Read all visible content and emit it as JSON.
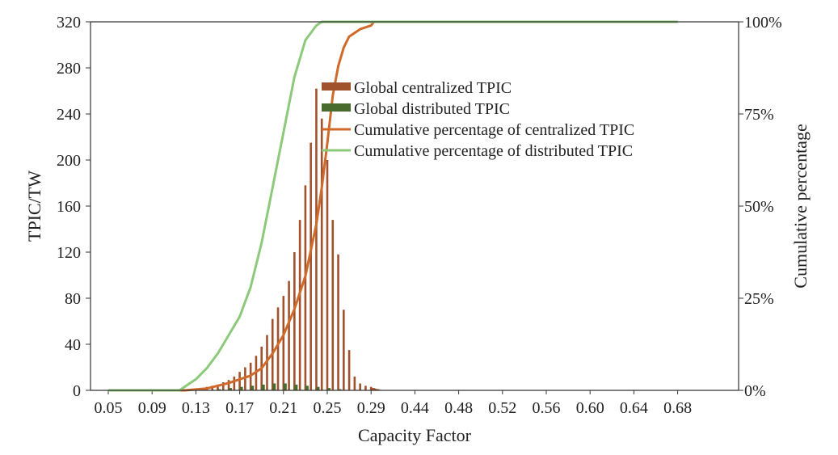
{
  "chart_data": {
    "type": "bar",
    "xlabel": "Capacity Factor",
    "ylabel": "TPIC/TW",
    "y2label": "Cumulative percentage",
    "ylim": [
      0,
      320
    ],
    "y2lim": [
      0,
      100
    ],
    "y_ticks": [
      0,
      40,
      80,
      120,
      160,
      200,
      240,
      280,
      320
    ],
    "y2_ticks": [
      "0%",
      "25%",
      "50%",
      "75%",
      "100%"
    ],
    "x_tick_labels": [
      "0.05",
      "0.09",
      "0.13",
      "0.17",
      "0.21",
      "0.25",
      "0.29",
      "0.44",
      "0.48",
      "0.52",
      "0.56",
      "0.60",
      "0.64",
      "0.68"
    ],
    "grid": false,
    "legend_position": "top-center",
    "legend": [
      {
        "label": "Global centralized TPIC",
        "kind": "bar",
        "color": "#a0522d"
      },
      {
        "label": "Global distributed TPIC",
        "kind": "bar",
        "color": "#4a6b2e"
      },
      {
        "label": "Cumulative percentage of centralized TPIC",
        "kind": "line",
        "color": "#d06a2a"
      },
      {
        "label": "Cumulative percentage of distributed TPIC",
        "kind": "line",
        "color": "#8cc97a"
      }
    ],
    "series": [
      {
        "name": "Global centralized TPIC",
        "color": "#a0522d",
        "points": [
          [
            0.12,
            0.5
          ],
          [
            0.125,
            1
          ],
          [
            0.13,
            1.5
          ],
          [
            0.135,
            2
          ],
          [
            0.14,
            3
          ],
          [
            0.145,
            4
          ],
          [
            0.15,
            5
          ],
          [
            0.155,
            7
          ],
          [
            0.16,
            9
          ],
          [
            0.165,
            12
          ],
          [
            0.17,
            16
          ],
          [
            0.175,
            20
          ],
          [
            0.18,
            24
          ],
          [
            0.185,
            30
          ],
          [
            0.19,
            38
          ],
          [
            0.195,
            48
          ],
          [
            0.2,
            62
          ],
          [
            0.205,
            72
          ],
          [
            0.21,
            82
          ],
          [
            0.215,
            95
          ],
          [
            0.22,
            120
          ],
          [
            0.225,
            148
          ],
          [
            0.23,
            178
          ],
          [
            0.235,
            215
          ],
          [
            0.24,
            262
          ],
          [
            0.245,
            236
          ],
          [
            0.25,
            200
          ],
          [
            0.255,
            148
          ],
          [
            0.26,
            118
          ],
          [
            0.265,
            70
          ],
          [
            0.27,
            35
          ],
          [
            0.275,
            12
          ],
          [
            0.28,
            6
          ],
          [
            0.285,
            4
          ],
          [
            0.29,
            3
          ],
          [
            0.295,
            2
          ],
          [
            0.3,
            2
          ],
          [
            0.305,
            1.5
          ],
          [
            0.31,
            1
          ],
          [
            0.315,
            1
          ],
          [
            0.32,
            0.5
          ]
        ]
      },
      {
        "name": "Global distributed TPIC",
        "color": "#4a6b2e",
        "points": [
          [
            0.15,
            1
          ],
          [
            0.16,
            2
          ],
          [
            0.17,
            3
          ],
          [
            0.18,
            4
          ],
          [
            0.19,
            5
          ],
          [
            0.2,
            6
          ],
          [
            0.21,
            6
          ],
          [
            0.22,
            5
          ],
          [
            0.23,
            4
          ],
          [
            0.24,
            3
          ],
          [
            0.25,
            2
          ],
          [
            0.26,
            1
          ]
        ]
      },
      {
        "name": "Cumulative percentage of centralized TPIC",
        "color": "#d06a2a",
        "points": [
          [
            0.05,
            0
          ],
          [
            0.12,
            0
          ],
          [
            0.14,
            0.5
          ],
          [
            0.16,
            2
          ],
          [
            0.18,
            4
          ],
          [
            0.19,
            6
          ],
          [
            0.2,
            10
          ],
          [
            0.21,
            15
          ],
          [
            0.22,
            22
          ],
          [
            0.23,
            31
          ],
          [
            0.24,
            45
          ],
          [
            0.245,
            55
          ],
          [
            0.25,
            67
          ],
          [
            0.255,
            80
          ],
          [
            0.26,
            88
          ],
          [
            0.265,
            93
          ],
          [
            0.27,
            96
          ],
          [
            0.28,
            98
          ],
          [
            0.29,
            99
          ],
          [
            0.3,
            100
          ],
          [
            0.68,
            100
          ]
        ]
      },
      {
        "name": "Cumulative percentage of distributed TPIC",
        "color": "#8cc97a",
        "points": [
          [
            0.05,
            0
          ],
          [
            0.115,
            0
          ],
          [
            0.12,
            1
          ],
          [
            0.13,
            3
          ],
          [
            0.14,
            6
          ],
          [
            0.15,
            10
          ],
          [
            0.16,
            15
          ],
          [
            0.17,
            20
          ],
          [
            0.18,
            28
          ],
          [
            0.19,
            40
          ],
          [
            0.2,
            55
          ],
          [
            0.21,
            70
          ],
          [
            0.22,
            85
          ],
          [
            0.23,
            95
          ],
          [
            0.24,
            99
          ],
          [
            0.245,
            100
          ],
          [
            0.68,
            100
          ]
        ]
      }
    ]
  }
}
